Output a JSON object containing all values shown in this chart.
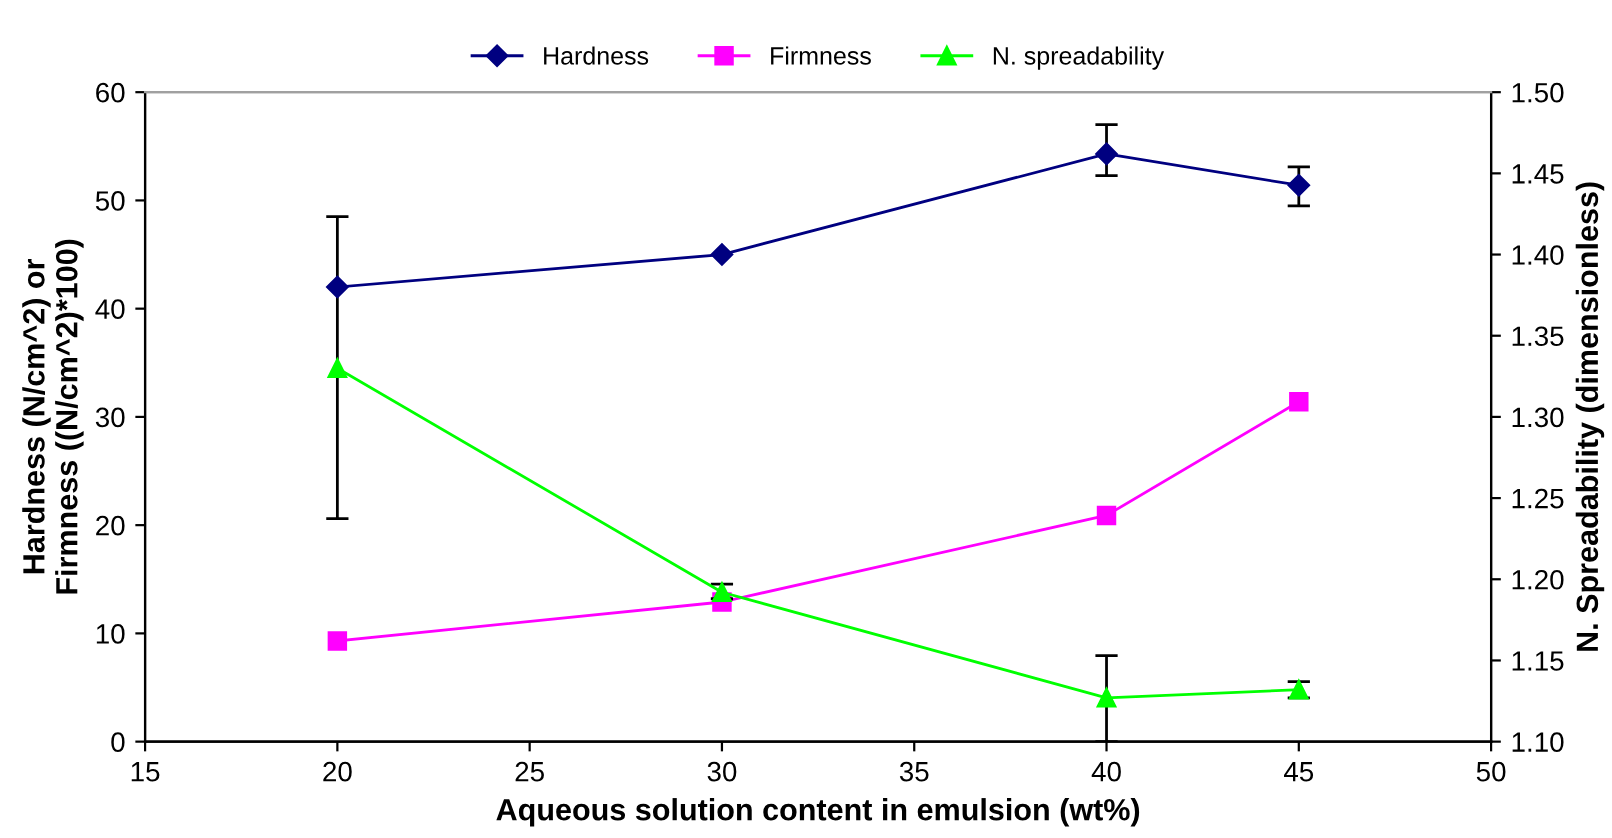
{
  "chart_data": {
    "type": "line",
    "xlabel": "Aqueous solution content in emulsion (wt%)",
    "ylabel": "Hardness (N/cm^2) or\nFirmness ((N/cm^2)*100)",
    "y2label": "N. Spreadability (dimensionless)",
    "x": [
      20,
      30,
      40,
      45
    ],
    "series": [
      {
        "name": "Hardness",
        "color": "#000080",
        "marker": "diamond",
        "values": [
          42,
          45,
          54.3,
          51.4
        ],
        "errors": [
          [
            20.6,
            48.5
          ],
          null,
          [
            52.3,
            57.0
          ],
          [
            49.5,
            53.1
          ]
        ]
      },
      {
        "name": "Firmness",
        "color": "#ff00ff",
        "marker": "square",
        "values": [
          9.3,
          12.9,
          20.9,
          31.4
        ]
      },
      {
        "name": "N. spreadability",
        "color": "#00ff00",
        "marker": "triangle",
        "axis": "y2",
        "values": [
          1.33,
          1.192,
          1.127,
          1.132
        ],
        "errors": [
          null,
          [
            1.188,
            1.197
          ],
          [
            1.1,
            1.153
          ],
          [
            1.127,
            1.137
          ]
        ]
      }
    ],
    "xlim": [
      15,
      50
    ],
    "xticks": [
      15,
      20,
      25,
      30,
      35,
      40,
      45,
      50
    ],
    "ylim": [
      0,
      60
    ],
    "yticks": [
      0,
      10,
      20,
      30,
      40,
      50,
      60
    ],
    "y2lim": [
      1.1,
      1.5
    ],
    "y2ticks": [
      {
        "value": 1.1,
        "label": "1.10"
      },
      {
        "value": 1.15,
        "label": "1.15"
      },
      {
        "value": 1.2,
        "label": "1.20"
      },
      {
        "value": 1.25,
        "label": "1.25"
      },
      {
        "value": 1.3,
        "label": "1.30"
      },
      {
        "value": 1.35,
        "label": "1.35"
      },
      {
        "value": 1.4,
        "label": "1.40"
      },
      {
        "value": 1.45,
        "label": "1.45"
      },
      {
        "value": 1.5,
        "label": "1.50"
      }
    ],
    "legend": "top",
    "grid": false
  }
}
